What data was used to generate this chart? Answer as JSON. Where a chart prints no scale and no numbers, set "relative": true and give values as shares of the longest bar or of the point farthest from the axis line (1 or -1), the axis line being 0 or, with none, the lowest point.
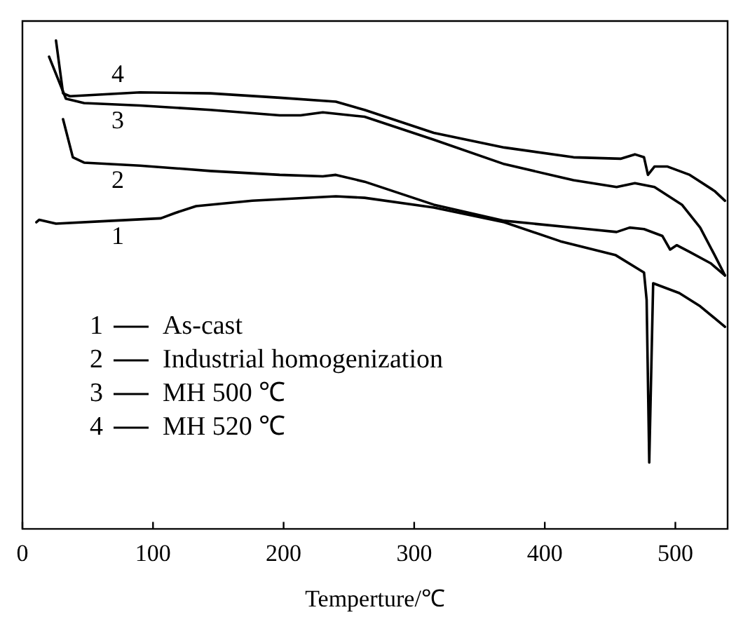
{
  "chart_data": {
    "type": "line",
    "relative": true,
    "xlabel": "Temperture/℃",
    "xlim": [
      0,
      540
    ],
    "xticks": [
      0,
      100,
      200,
      300,
      400,
      500
    ],
    "tick_labels": "x",
    "grid": false,
    "legend": "bottom left",
    "marker": "none",
    "line_style": "solid",
    "series": [
      {
        "name": "As-cast",
        "color": "#000000",
        "x": [
          10.7,
          12.9,
          25.7,
          68.6,
          106,
          117,
          133,
          176,
          240,
          262,
          315,
          369,
          412,
          454,
          476,
          478,
          480,
          483,
          503,
          519,
          538
        ],
        "values": [
          0.628,
          0.633,
          0.625,
          0.631,
          0.636,
          0.647,
          0.661,
          0.672,
          0.681,
          0.678,
          0.658,
          0.628,
          0.589,
          0.561,
          0.525,
          0.469,
          0.136,
          0.503,
          0.483,
          0.456,
          0.414
        ]
      },
      {
        "name": "Industrial homogenization",
        "color": "#000000",
        "x": [
          31.1,
          38.6,
          47.2,
          90,
          144,
          197,
          230,
          240,
          262,
          315,
          369,
          433,
          455,
          465,
          476,
          490,
          496,
          501,
          511,
          527,
          538
        ],
        "values": [
          0.839,
          0.761,
          0.75,
          0.744,
          0.733,
          0.725,
          0.722,
          0.725,
          0.711,
          0.664,
          0.631,
          0.614,
          0.608,
          0.617,
          0.614,
          0.6,
          0.572,
          0.581,
          0.567,
          0.544,
          0.519
        ]
      },
      {
        "name": "MH 500 ℃",
        "color": "#000000",
        "x": [
          20.4,
          33.3,
          47.2,
          90,
          144,
          197,
          213,
          230,
          262,
          315,
          369,
          422,
          455,
          469,
          484,
          505,
          519,
          530,
          538
        ],
        "values": [
          0.967,
          0.881,
          0.872,
          0.867,
          0.858,
          0.847,
          0.847,
          0.853,
          0.844,
          0.797,
          0.747,
          0.714,
          0.7,
          0.708,
          0.7,
          0.664,
          0.617,
          0.561,
          0.519
        ]
      },
      {
        "name": "MH 520 ℃",
        "color": "#000000",
        "x": [
          25.7,
          31.1,
          36.4,
          90,
          144,
          197,
          240,
          262,
          315,
          369,
          422,
          458,
          469,
          476,
          479,
          484,
          494,
          511,
          530,
          538
        ],
        "values": [
          1.0,
          0.892,
          0.886,
          0.894,
          0.892,
          0.883,
          0.875,
          0.858,
          0.811,
          0.781,
          0.761,
          0.758,
          0.767,
          0.761,
          0.725,
          0.742,
          0.742,
          0.725,
          0.692,
          0.672
        ]
      }
    ],
    "annotations": [
      "1",
      "2",
      "3",
      "4"
    ]
  }
}
